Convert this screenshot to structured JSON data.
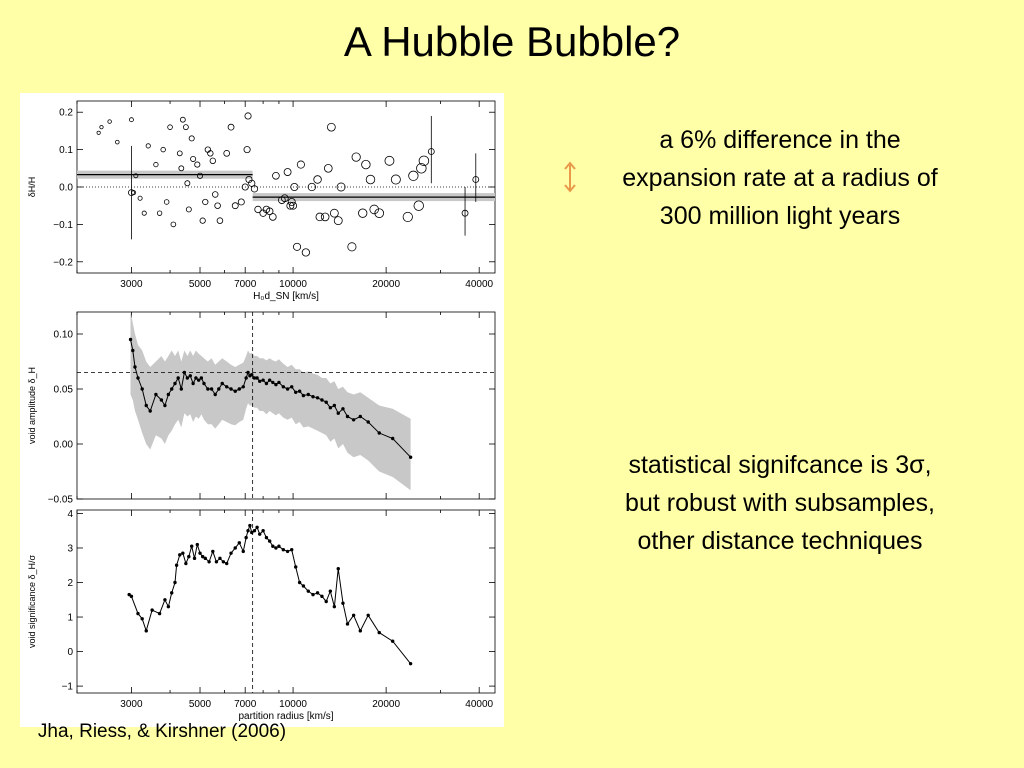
{
  "slide": {
    "title": "A Hubble Bubble?",
    "note_top": "a 6% difference in the expansion rate at a radius of 300 million light years",
    "note_bottom_lines": [
      "statistical signifcance is 3σ,",
      "but robust with subsamples, other distance techniques"
    ],
    "citation": "Jha, Riess, & Kirshner (2006)",
    "accent_color": "#e89a4a",
    "arrow_icon": "up-down-arrow-icon"
  },
  "chart_data": [
    {
      "type": "scatter",
      "xlabel": "H₀d_SN  [km/s]",
      "ylabel": "δH/H",
      "xscale": "log",
      "xlim": [
        2000,
        45000
      ],
      "ylim": [
        -0.23,
        0.23
      ],
      "xticks": [
        3000,
        5000,
        7000,
        10000,
        20000,
        40000
      ],
      "yticks": [
        -0.2,
        -0.1,
        0.0,
        0.1,
        0.2
      ],
      "ytick_labels": [
        "−0.2",
        "−0.1",
        "0.0",
        "0.1",
        "0.2"
      ],
      "reference_line": 0.0,
      "bands": [
        {
          "x": [
            2000,
            7400
          ],
          "y": 0.033
        },
        {
          "x": [
            7400,
            45000
          ],
          "y": -0.027
        }
      ],
      "points": [
        [
          2350,
          0.145
        ],
        [
          2400,
          0.16
        ],
        [
          2550,
          0.175
        ],
        [
          2700,
          0.12
        ],
        [
          3000,
          0.18
        ],
        [
          3050,
          -0.015
        ],
        [
          3100,
          0.03
        ],
        [
          3200,
          -0.03
        ],
        [
          3300,
          -0.07
        ],
        [
          3400,
          0.11
        ],
        [
          3600,
          0.06
        ],
        [
          3700,
          -0.07
        ],
        [
          3800,
          0.1
        ],
        [
          3900,
          -0.04
        ],
        [
          4000,
          0.16
        ],
        [
          4100,
          -0.1
        ],
        [
          4300,
          0.09
        ],
        [
          4350,
          0.05
        ],
        [
          4400,
          0.18
        ],
        [
          4500,
          0.16
        ],
        [
          4550,
          0.01
        ],
        [
          4600,
          -0.06
        ],
        [
          4700,
          0.13
        ],
        [
          4750,
          0.075
        ],
        [
          4900,
          0.06
        ],
        [
          5000,
          0.03
        ],
        [
          5100,
          -0.09
        ],
        [
          5200,
          -0.04
        ],
        [
          5300,
          0.1
        ],
        [
          5400,
          0.09
        ],
        [
          5500,
          0.07
        ],
        [
          5600,
          -0.02
        ],
        [
          5700,
          -0.05
        ],
        [
          5800,
          -0.09
        ],
        [
          6100,
          0.09
        ],
        [
          6300,
          0.16
        ],
        [
          6500,
          -0.05
        ],
        [
          6800,
          -0.04
        ],
        [
          7000,
          0.0
        ],
        [
          7100,
          0.1
        ],
        [
          7150,
          0.19
        ],
        [
          7200,
          0.02
        ],
        [
          7350,
          0.01
        ],
        [
          7500,
          -0.005
        ],
        [
          7700,
          -0.06
        ],
        [
          8000,
          -0.07
        ],
        [
          8200,
          -0.06
        ],
        [
          8400,
          -0.065
        ],
        [
          8600,
          -0.08
        ],
        [
          8800,
          0.03
        ],
        [
          9200,
          -0.035
        ],
        [
          9400,
          -0.03
        ],
        [
          9600,
          0.04
        ],
        [
          9800,
          -0.05
        ],
        [
          9900,
          -0.04
        ],
        [
          10000,
          -0.05
        ],
        [
          10100,
          0.0
        ],
        [
          10300,
          -0.16
        ],
        [
          10600,
          0.06
        ],
        [
          11000,
          -0.175
        ],
        [
          11500,
          0.0
        ],
        [
          12000,
          0.02
        ],
        [
          12200,
          -0.08
        ],
        [
          12700,
          -0.08
        ],
        [
          13000,
          0.05
        ],
        [
          13300,
          0.16
        ],
        [
          13600,
          -0.07
        ],
        [
          14000,
          -0.09
        ],
        [
          14300,
          0.0
        ],
        [
          15500,
          -0.16
        ],
        [
          16000,
          0.08
        ],
        [
          16800,
          -0.07
        ],
        [
          17200,
          0.06
        ],
        [
          17800,
          0.02
        ],
        [
          18300,
          -0.06
        ],
        [
          19000,
          -0.07
        ],
        [
          20500,
          0.07
        ],
        [
          21500,
          0.02
        ],
        [
          23500,
          -0.08
        ],
        [
          24500,
          0.03
        ],
        [
          25500,
          -0.05
        ],
        [
          26000,
          0.05
        ],
        [
          26500,
          0.07
        ]
      ],
      "error_bars": [
        {
          "x": 3000,
          "y": -0.015,
          "low": -0.14,
          "high": 0.11
        },
        {
          "x": 28000,
          "y": 0.095,
          "low": 0.01,
          "high": 0.19
        },
        {
          "x": 36000,
          "y": -0.07,
          "low": -0.13,
          "high": 0.0
        },
        {
          "x": 39000,
          "y": 0.02,
          "low": -0.04,
          "high": 0.09
        }
      ]
    },
    {
      "type": "line",
      "xlabel": "",
      "ylabel": "void amplitude δ_H",
      "xscale": "log",
      "xlim": [
        2000,
        45000
      ],
      "ylim": [
        -0.05,
        0.12
      ],
      "xticks": [
        3000,
        5000,
        7000,
        10000,
        20000,
        40000
      ],
      "yticks": [
        -0.05,
        0.0,
        0.05,
        0.1
      ],
      "ytick_labels": [
        "−0.05",
        "0.00",
        "0.05",
        "0.10"
      ],
      "reference_x": 7400,
      "reference_y": 0.065,
      "x": [
        2980,
        3030,
        3080,
        3150,
        3250,
        3350,
        3450,
        3600,
        3750,
        3850,
        3950,
        4050,
        4150,
        4250,
        4350,
        4450,
        4550,
        4650,
        4750,
        4850,
        4950,
        5050,
        5150,
        5300,
        5450,
        5600,
        5750,
        5900,
        6100,
        6300,
        6500,
        6700,
        6900,
        7050,
        7150,
        7250,
        7350,
        7500,
        7650,
        7800,
        8000,
        8200,
        8400,
        8600,
        8800,
        9000,
        9300,
        9600,
        9900,
        10200,
        10500,
        10800,
        11200,
        11600,
        12000,
        12400,
        12800,
        13200,
        13600,
        14000,
        14500,
        15000,
        15700,
        16500,
        17500,
        19000,
        21000,
        24000
      ],
      "y": [
        0.095,
        0.085,
        0.07,
        0.06,
        0.05,
        0.035,
        0.03,
        0.045,
        0.04,
        0.035,
        0.045,
        0.05,
        0.055,
        0.06,
        0.05,
        0.065,
        0.06,
        0.062,
        0.055,
        0.06,
        0.058,
        0.06,
        0.055,
        0.05,
        0.05,
        0.045,
        0.05,
        0.055,
        0.052,
        0.05,
        0.048,
        0.05,
        0.052,
        0.06,
        0.065,
        0.062,
        0.063,
        0.06,
        0.06,
        0.057,
        0.058,
        0.055,
        0.058,
        0.056,
        0.054,
        0.056,
        0.052,
        0.05,
        0.052,
        0.047,
        0.048,
        0.044,
        0.045,
        0.043,
        0.042,
        0.04,
        0.038,
        0.033,
        0.035,
        0.028,
        0.032,
        0.025,
        0.022,
        0.025,
        0.02,
        0.01,
        0.005,
        -0.012
      ],
      "band_upper": [
        0.12,
        0.11,
        0.1,
        0.09,
        0.085,
        0.075,
        0.07,
        0.075,
        0.08,
        0.075,
        0.08,
        0.085,
        0.08,
        0.085,
        0.075,
        0.085,
        0.08,
        0.085,
        0.08,
        0.085,
        0.082,
        0.08,
        0.078,
        0.075,
        0.078,
        0.072,
        0.075,
        0.078,
        0.075,
        0.072,
        0.07,
        0.072,
        0.074,
        0.08,
        0.085,
        0.082,
        0.083,
        0.08,
        0.08,
        0.078,
        0.078,
        0.076,
        0.078,
        0.076,
        0.075,
        0.077,
        0.073,
        0.07,
        0.072,
        0.068,
        0.068,
        0.065,
        0.066,
        0.064,
        0.063,
        0.06,
        0.06,
        0.055,
        0.057,
        0.05,
        0.052,
        0.047,
        0.045,
        0.047,
        0.042,
        0.035,
        0.032,
        0.023
      ],
      "band_lower": [
        0.045,
        0.04,
        0.03,
        0.022,
        0.01,
        0.0,
        -0.005,
        0.008,
        0.005,
        0.0,
        0.008,
        0.012,
        0.018,
        0.022,
        0.015,
        0.028,
        0.025,
        0.027,
        0.02,
        0.025,
        0.023,
        0.027,
        0.022,
        0.018,
        0.018,
        0.014,
        0.018,
        0.022,
        0.02,
        0.018,
        0.017,
        0.02,
        0.022,
        0.032,
        0.037,
        0.035,
        0.035,
        0.033,
        0.033,
        0.03,
        0.03,
        0.027,
        0.03,
        0.028,
        0.026,
        0.028,
        0.024,
        0.022,
        0.024,
        0.018,
        0.02,
        0.015,
        0.016,
        0.014,
        0.012,
        0.01,
        0.008,
        0.002,
        0.005,
        -0.004,
        0.0,
        -0.008,
        -0.012,
        -0.01,
        -0.015,
        -0.025,
        -0.03,
        -0.042
      ]
    },
    {
      "type": "line",
      "xlabel": "partition radius  [km/s]",
      "ylabel": "void significance  δ_H/σ",
      "xscale": "log",
      "xlim": [
        2000,
        45000
      ],
      "ylim": [
        -1.2,
        4.1
      ],
      "xticks": [
        3000,
        5000,
        7000,
        10000,
        20000,
        40000
      ],
      "xtick_labels": [
        "3000",
        "5000",
        "7000",
        "10000",
        "20000",
        "40000"
      ],
      "yticks": [
        -1,
        0,
        1,
        2,
        3,
        4
      ],
      "ytick_labels": [
        "−1",
        "0",
        "1",
        "2",
        "3",
        "4"
      ],
      "reference_x": 7400,
      "x": [
        2950,
        3000,
        3150,
        3250,
        3350,
        3500,
        3700,
        3850,
        3950,
        4050,
        4150,
        4200,
        4300,
        4400,
        4500,
        4600,
        4700,
        4800,
        4900,
        5000,
        5100,
        5200,
        5350,
        5500,
        5650,
        5800,
        5950,
        6100,
        6300,
        6500,
        6700,
        6900,
        7050,
        7150,
        7250,
        7350,
        7500,
        7650,
        7800,
        8000,
        8200,
        8400,
        8600,
        8800,
        9000,
        9300,
        9600,
        9900,
        10200,
        10500,
        10800,
        11200,
        11600,
        12000,
        12400,
        12800,
        13200,
        13600,
        14000,
        14500,
        15000,
        15700,
        16500,
        17500,
        19000,
        21000,
        24000
      ],
      "y": [
        1.65,
        1.6,
        1.1,
        0.95,
        0.6,
        1.2,
        1.1,
        1.5,
        1.3,
        1.7,
        2.0,
        2.5,
        2.8,
        2.85,
        2.55,
        2.75,
        3.05,
        2.7,
        3.1,
        2.85,
        2.75,
        2.7,
        2.6,
        2.9,
        2.6,
        2.7,
        2.6,
        2.55,
        2.85,
        3.0,
        3.15,
        2.9,
        3.3,
        3.5,
        3.65,
        3.45,
        3.5,
        3.6,
        3.4,
        3.5,
        3.3,
        3.2,
        3.05,
        3.0,
        3.05,
        2.95,
        2.9,
        2.95,
        2.45,
        2.0,
        1.9,
        1.75,
        1.65,
        1.7,
        1.6,
        1.45,
        1.75,
        1.3,
        2.4,
        1.4,
        0.8,
        1.05,
        0.6,
        1.05,
        0.55,
        0.3,
        -0.35
      ]
    }
  ]
}
